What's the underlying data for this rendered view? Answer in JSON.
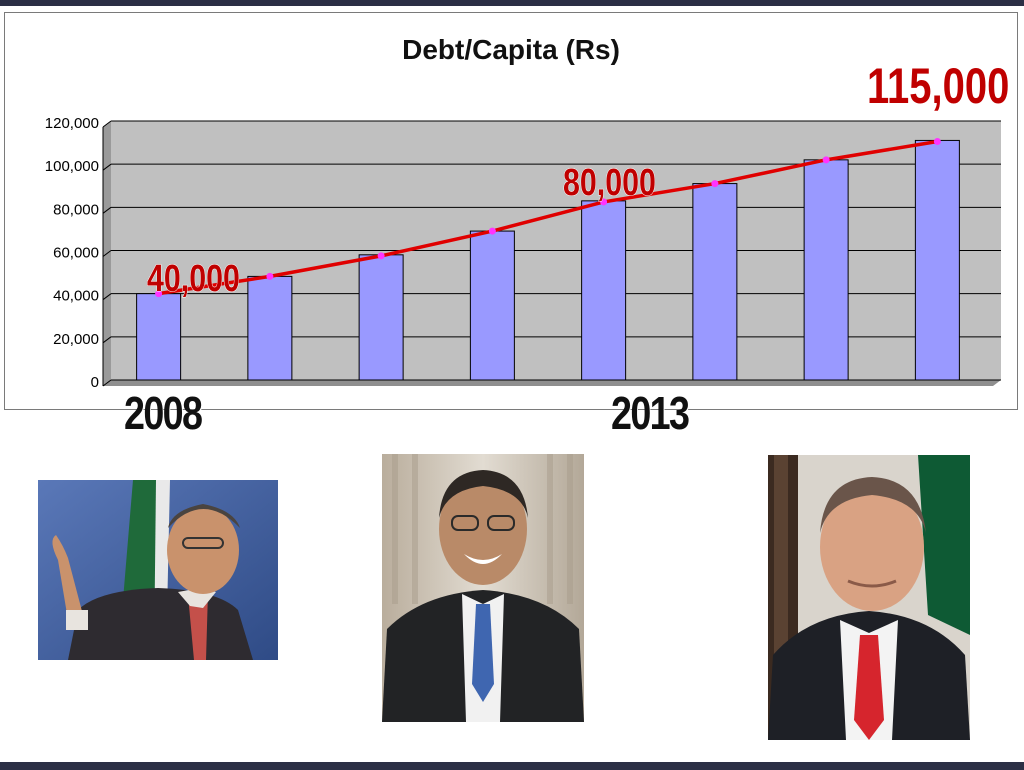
{
  "chart_data": {
    "type": "bar",
    "title": "Debt/Capita (Rs)",
    "categories": [
      "",
      "",
      "",
      "",
      "",
      "",
      "",
      ""
    ],
    "series": [
      {
        "values": [
          40000,
          48000,
          58000,
          69000,
          83000,
          91000,
          102000,
          111000
        ]
      }
    ],
    "trend_line": [
      40000,
      48000,
      57500,
      69000,
      82500,
      91000,
      102000,
      110500
    ],
    "ylim": [
      0,
      120000
    ],
    "yticks": [
      "0",
      "20,000",
      "40,000",
      "60,000",
      "80,000",
      "100,000",
      "120,000"
    ],
    "yticks_values": [
      0,
      20000,
      40000,
      60000,
      80000,
      100000,
      120000
    ],
    "grid": true,
    "legend": "none",
    "annotations": [
      "40,000",
      "80,000",
      "115,000"
    ],
    "colors": {
      "bar": "#9999ff",
      "plot_bg": "#c0c0c0",
      "trend": "#e00000",
      "marker": "#ff33ff",
      "annotation": "#c00000"
    }
  },
  "year_labels": {
    "start": "2008",
    "end": "2013"
  },
  "photos": [
    {
      "icon": "portrait-photo",
      "colors": {
        "background": "#3f5fa0",
        "flag": "#1f6a3a",
        "suit": "#2e2b30",
        "tie": "#c4504a"
      }
    },
    {
      "icon": "portrait-photo",
      "colors": {
        "background": "#c9c1b4",
        "suit": "#222325",
        "tie": "#3f66b0"
      }
    },
    {
      "icon": "portrait-photo",
      "colors": {
        "background": "#d9d4cc",
        "flag": "#0e5a34",
        "suit": "#1e2026",
        "tie": "#d6252d"
      }
    }
  ]
}
